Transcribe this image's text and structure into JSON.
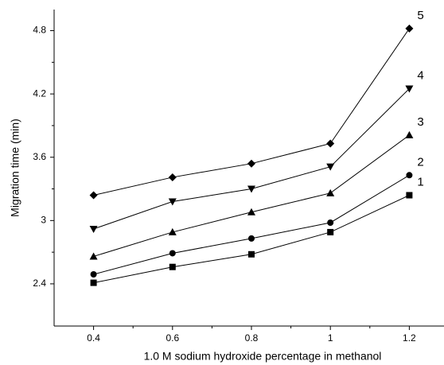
{
  "chart_data": {
    "type": "line",
    "x_label": "1.0 M sodium hydroxide percentage in methanol",
    "y_label": "Migration time (min)",
    "x": [
      0.4,
      0.6,
      0.8,
      1.0,
      1.2
    ],
    "xlim": [
      0.3,
      1.3
    ],
    "xticks": [
      0.4,
      0.6,
      0.8,
      1.0,
      1.2
    ],
    "ylim": [
      2.0,
      5.0
    ],
    "yticks": [
      2.4,
      3.0,
      3.6,
      4.2,
      4.8
    ],
    "grid": false,
    "series": [
      {
        "name": "1",
        "color": "#000000",
        "marker": "square",
        "values": [
          2.41,
          2.56,
          2.68,
          2.89,
          3.24
        ]
      },
      {
        "name": "2",
        "color": "#000000",
        "marker": "circle",
        "values": [
          2.49,
          2.69,
          2.83,
          2.98,
          3.43
        ]
      },
      {
        "name": "3",
        "color": "#000000",
        "marker": "triangle-up",
        "values": [
          2.66,
          2.89,
          3.08,
          3.26,
          3.81
        ]
      },
      {
        "name": "4",
        "color": "#000000",
        "marker": "triangle-down",
        "values": [
          2.92,
          3.18,
          3.3,
          3.51,
          4.25
        ]
      },
      {
        "name": "5",
        "color": "#000000",
        "marker": "diamond",
        "values": [
          3.24,
          3.41,
          3.54,
          3.73,
          4.82
        ]
      }
    ]
  }
}
